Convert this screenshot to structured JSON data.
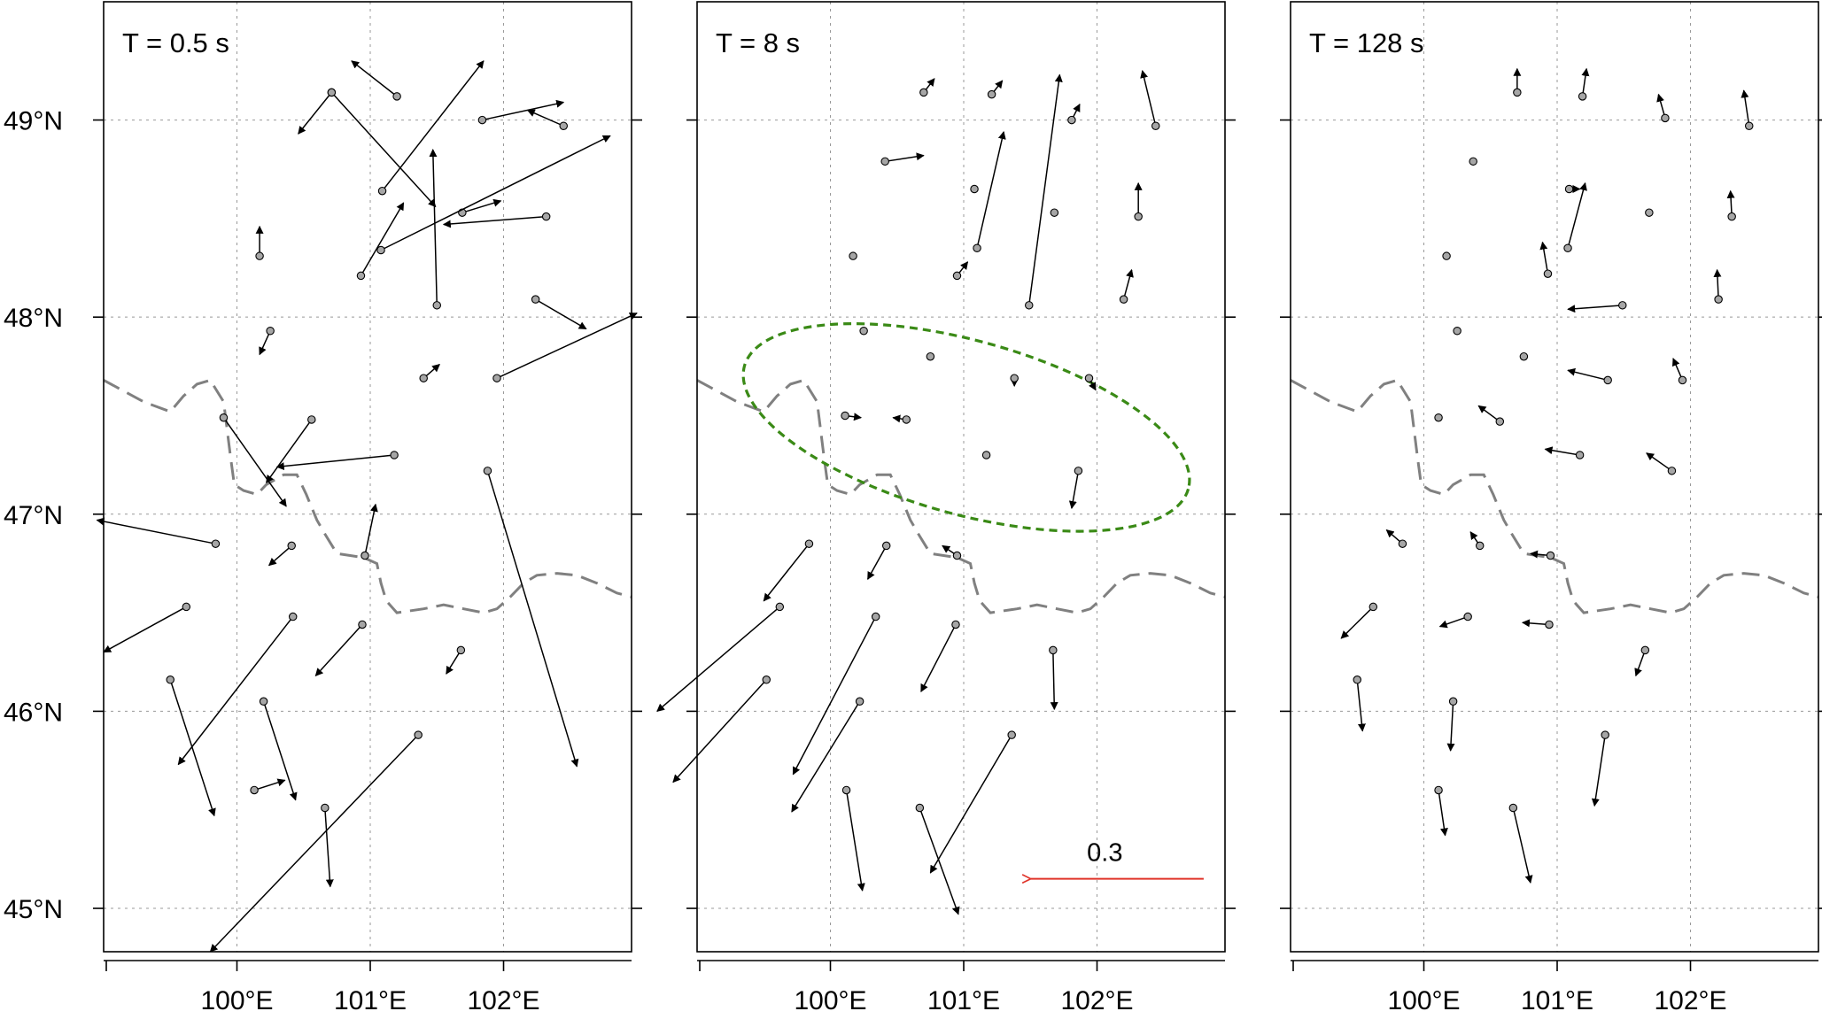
{
  "chart_data": {
    "type": "vector-field",
    "panels": [
      {
        "title": "T = 0.5 s",
        "vectors": [
          [
            101.2,
            49.12,
            100.86,
            49.3
          ],
          [
            100.71,
            49.14,
            100.46,
            48.93
          ],
          [
            100.71,
            49.14,
            101.49,
            48.56
          ],
          [
            101.09,
            48.64,
            101.85,
            49.3
          ],
          [
            101.84,
            49.0,
            102.45,
            49.09
          ],
          [
            102.45,
            48.97,
            102.18,
            49.05
          ],
          [
            100.93,
            48.21,
            101.25,
            48.58
          ],
          [
            101.69,
            48.53,
            101.98,
            48.59
          ],
          [
            101.08,
            48.34,
            102.8,
            48.92
          ],
          [
            102.32,
            48.51,
            101.55,
            48.47
          ],
          [
            101.5,
            48.06,
            101.47,
            48.85
          ],
          [
            100.17,
            48.31,
            100.17,
            48.46
          ],
          [
            100.25,
            47.93,
            100.17,
            47.81
          ],
          [
            102.24,
            48.09,
            102.62,
            47.94
          ],
          [
            101.4,
            47.69,
            101.52,
            47.76
          ],
          [
            101.95,
            47.69,
            103.0,
            48.02
          ],
          [
            99.9,
            47.49,
            100.37,
            47.04
          ],
          [
            100.56,
            47.48,
            100.22,
            47.16
          ],
          [
            101.18,
            47.3,
            100.3,
            47.24
          ],
          [
            101.88,
            47.22,
            102.55,
            45.72
          ],
          [
            100.41,
            46.84,
            100.24,
            46.74
          ],
          [
            100.96,
            46.79,
            101.04,
            47.05
          ],
          [
            99.84,
            46.85,
            98.95,
            46.97
          ],
          [
            99.62,
            46.53,
            99.0,
            46.3
          ],
          [
            100.42,
            46.48,
            99.56,
            45.73
          ],
          [
            100.94,
            46.44,
            100.59,
            46.18
          ],
          [
            101.68,
            46.31,
            101.57,
            46.19
          ],
          [
            99.5,
            46.16,
            99.83,
            45.47
          ],
          [
            100.2,
            46.05,
            100.44,
            45.55
          ],
          [
            100.13,
            45.6,
            100.36,
            45.65
          ],
          [
            100.66,
            45.51,
            100.7,
            45.11
          ],
          [
            101.36,
            45.88,
            99.8,
            44.78
          ]
        ]
      },
      {
        "title": "T = 8 s",
        "vectors": [
          [
            100.7,
            49.14,
            100.78,
            49.21
          ],
          [
            101.21,
            49.13,
            101.29,
            49.2
          ],
          [
            101.81,
            49.0,
            101.87,
            49.08
          ],
          [
            102.44,
            48.97,
            102.34,
            49.25
          ],
          [
            100.41,
            48.79,
            100.7,
            48.82
          ],
          [
            101.08,
            48.65,
            101.08,
            48.65
          ],
          [
            101.1,
            48.35,
            101.3,
            48.94
          ],
          [
            101.68,
            48.53,
            101.68,
            48.53
          ],
          [
            102.31,
            48.51,
            102.31,
            48.68
          ],
          [
            100.17,
            48.31,
            100.17,
            48.31
          ],
          [
            100.95,
            48.21,
            101.03,
            48.28
          ],
          [
            101.49,
            48.06,
            101.72,
            49.23
          ],
          [
            102.2,
            48.09,
            102.26,
            48.24
          ],
          [
            100.25,
            47.93,
            100.25,
            47.93
          ],
          [
            100.75,
            47.8,
            100.75,
            47.8
          ],
          [
            101.38,
            47.69,
            101.38,
            47.65
          ],
          [
            101.94,
            47.69,
            101.99,
            47.63
          ],
          [
            100.11,
            47.5,
            100.23,
            47.49
          ],
          [
            100.57,
            47.48,
            100.47,
            47.49
          ],
          [
            101.17,
            47.3,
            101.17,
            47.3
          ],
          [
            101.86,
            47.22,
            101.81,
            47.03
          ],
          [
            99.84,
            46.85,
            99.5,
            46.56
          ],
          [
            100.42,
            46.84,
            100.28,
            46.67
          ],
          [
            100.95,
            46.79,
            100.84,
            46.84
          ],
          [
            99.62,
            46.53,
            98.7,
            46.0
          ],
          [
            100.34,
            46.48,
            99.72,
            45.68
          ],
          [
            100.94,
            46.44,
            100.68,
            46.1
          ],
          [
            101.67,
            46.31,
            101.68,
            46.01
          ],
          [
            99.52,
            46.16,
            98.82,
            45.64
          ],
          [
            100.22,
            46.05,
            99.71,
            45.49
          ],
          [
            101.36,
            45.88,
            100.75,
            45.18
          ],
          [
            100.12,
            45.6,
            100.24,
            45.09
          ],
          [
            100.67,
            45.51,
            100.96,
            44.97
          ]
        ]
      },
      {
        "title": "T = 128 s",
        "vectors": [
          [
            100.7,
            49.14,
            100.7,
            49.26
          ],
          [
            101.19,
            49.12,
            101.22,
            49.26
          ],
          [
            101.81,
            49.01,
            101.76,
            49.13
          ],
          [
            102.44,
            48.97,
            102.4,
            49.15
          ],
          [
            100.37,
            48.79,
            100.37,
            48.79
          ],
          [
            101.09,
            48.65,
            101.17,
            48.65
          ],
          [
            101.08,
            48.35,
            101.21,
            48.68
          ],
          [
            101.69,
            48.53,
            101.69,
            48.53
          ],
          [
            102.31,
            48.51,
            102.3,
            48.64
          ],
          [
            100.17,
            48.31,
            100.17,
            48.31
          ],
          [
            100.93,
            48.22,
            100.89,
            48.38
          ],
          [
            101.49,
            48.06,
            101.08,
            48.04
          ],
          [
            102.21,
            48.09,
            102.2,
            48.24
          ],
          [
            100.25,
            47.93,
            100.25,
            47.93
          ],
          [
            100.75,
            47.8,
            100.75,
            47.8
          ],
          [
            101.38,
            47.68,
            101.08,
            47.73
          ],
          [
            101.94,
            47.68,
            101.87,
            47.79
          ],
          [
            100.11,
            47.49,
            100.11,
            47.49
          ],
          [
            100.57,
            47.47,
            100.41,
            47.55
          ],
          [
            101.17,
            47.3,
            100.91,
            47.33
          ],
          [
            101.86,
            47.22,
            101.67,
            47.31
          ],
          [
            99.84,
            46.85,
            99.72,
            46.92
          ],
          [
            100.42,
            46.84,
            100.35,
            46.91
          ],
          [
            100.95,
            46.79,
            100.8,
            46.8
          ],
          [
            99.62,
            46.53,
            99.38,
            46.37
          ],
          [
            100.33,
            46.48,
            100.12,
            46.43
          ],
          [
            100.94,
            46.44,
            100.74,
            46.45
          ],
          [
            101.66,
            46.31,
            101.59,
            46.18
          ],
          [
            99.5,
            46.16,
            99.54,
            45.9
          ],
          [
            100.22,
            46.05,
            100.2,
            45.8
          ],
          [
            101.36,
            45.88,
            101.28,
            45.52
          ],
          [
            100.11,
            45.6,
            100.16,
            45.37
          ],
          [
            100.67,
            45.51,
            100.8,
            45.13
          ]
        ]
      }
    ],
    "x_ticks": [
      {
        "value": 100,
        "label": "100°E"
      },
      {
        "value": 101,
        "label": "101°E"
      },
      {
        "value": 102,
        "label": "102°E"
      }
    ],
    "y_ticks": [
      {
        "value": 45,
        "label": "45°N"
      },
      {
        "value": 46,
        "label": "46°N"
      },
      {
        "value": 47,
        "label": "47°N"
      },
      {
        "value": 48,
        "label": "48°N"
      },
      {
        "value": 49,
        "label": "49°N"
      }
    ],
    "xlim": [
      99.0,
      102.96
    ],
    "ylim": [
      44.78,
      49.6
    ],
    "grid": true,
    "boundary": [
      [
        99.0,
        47.68
      ],
      [
        99.3,
        47.57
      ],
      [
        99.5,
        47.52
      ],
      [
        99.6,
        47.6
      ],
      [
        99.7,
        47.66
      ],
      [
        99.8,
        47.68
      ],
      [
        99.9,
        47.57
      ],
      [
        99.95,
        47.3
      ],
      [
        99.98,
        47.15
      ],
      [
        100.05,
        47.12
      ],
      [
        100.15,
        47.1
      ],
      [
        100.22,
        47.15
      ],
      [
        100.35,
        47.2
      ],
      [
        100.45,
        47.2
      ],
      [
        100.52,
        47.1
      ],
      [
        100.6,
        46.97
      ],
      [
        100.66,
        46.9
      ],
      [
        100.75,
        46.8
      ],
      [
        100.85,
        46.79
      ],
      [
        100.95,
        46.78
      ],
      [
        101.05,
        46.75
      ],
      [
        101.08,
        46.65
      ],
      [
        101.12,
        46.56
      ],
      [
        101.2,
        46.5
      ],
      [
        101.4,
        46.52
      ],
      [
        101.55,
        46.54
      ],
      [
        101.7,
        46.52
      ],
      [
        101.85,
        46.5
      ],
      [
        101.95,
        46.52
      ],
      [
        102.05,
        46.58
      ],
      [
        102.15,
        46.65
      ],
      [
        102.25,
        46.69
      ],
      [
        102.4,
        46.7
      ],
      [
        102.55,
        46.69
      ],
      [
        102.7,
        46.65
      ],
      [
        102.85,
        46.6
      ],
      [
        102.96,
        46.58
      ]
    ],
    "ellipse": {
      "panel": 1,
      "center_lon": 101.02,
      "center_lat": 47.44,
      "color": "#3a8a16"
    },
    "scale_arrow": {
      "panel": 1,
      "label": "0.3",
      "color": "#e0342a",
      "lon_from": 102.8,
      "lon_to": 101.45,
      "lat": 45.15
    }
  }
}
